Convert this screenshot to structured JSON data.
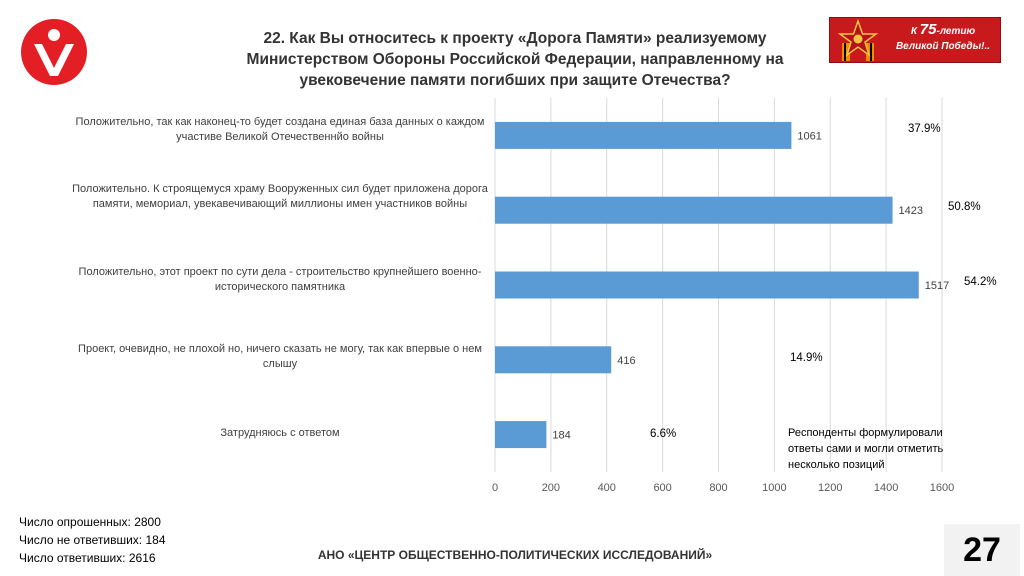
{
  "header": {
    "title": "22. Как Вы относитесь к проекту «Дорога Памяти» реализуемому Министерством Обороны Российской Федерации, направленному на увековечение памяти погибших при защите Отечества?",
    "banner_prefix": "К ",
    "banner_number": "75",
    "banner_suffix": "-летию",
    "banner_line2": "Великой Победы!.."
  },
  "colors": {
    "bar": "#5b9bd5",
    "logo": "#e31e24",
    "banner": "#c8191c",
    "grid": "#d9d9d9"
  },
  "chart_data": {
    "type": "bar",
    "orientation": "horizontal",
    "categories": [
      "Положительно, так как наконец-то будет создана единая база данных о каждом участиве Великой Отечественнйо войны",
      "Положительно. К строящемуся храму Вооруженных сил будет приложена дорога памяти, мемориал, увекавечивающий миллионы имен участников войны",
      "Положительно, этот проект по сути дела - строительство крупнейшего военно-исторического памятника",
      "Проект, очевидно, не плохой но, ничего сказать не могу, так как впервые о нем слышу",
      "Затрудняюсь с ответом"
    ],
    "values": [
      1061,
      1423,
      1517,
      416,
      184
    ],
    "percent_labels": [
      "37.9%",
      "50.8%",
      "54.2%",
      "14.9%",
      "6.6%"
    ],
    "xlim": [
      0,
      1600
    ],
    "xticks": [
      0,
      200,
      400,
      600,
      800,
      1000,
      1200,
      1400,
      1600
    ],
    "grid": true,
    "note": "Респонденты формулировали ответы сами и могли отметить несколько позиций"
  },
  "stats": [
    "Число опрошенных: 2800",
    "Число не ответивших: 184",
    "Число ответивших: 2616"
  ],
  "footer": "АНО «ЦЕНТР ОБЩЕСТВЕННО-ПОЛИТИЧЕСКИХ ИССЛЕДОВАНИЙ»",
  "page_number": "27"
}
